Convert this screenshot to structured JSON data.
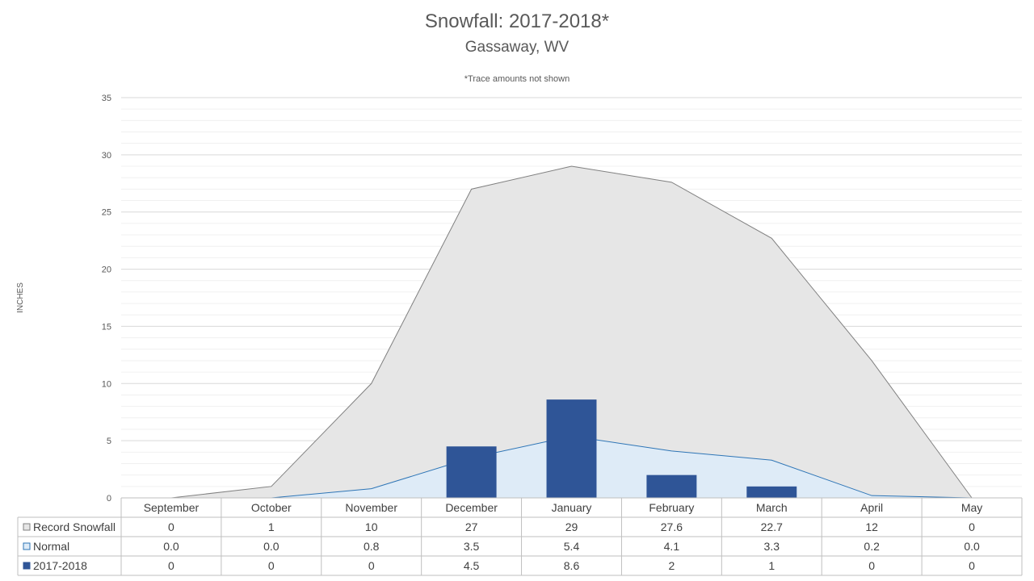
{
  "chart_data": {
    "type": "bar",
    "title": "Snowfall: 2017-2018*",
    "subtitle": "Gassaway, WV",
    "note": "*Trace amounts not shown",
    "ylabel": "INCHES",
    "ylim": [
      0,
      35
    ],
    "yticks": [
      0,
      5,
      10,
      15,
      20,
      25,
      30,
      35
    ],
    "minor_grid_step": 1,
    "grid": true,
    "categories": [
      "September",
      "October",
      "November",
      "December",
      "January",
      "February",
      "March",
      "April",
      "May"
    ],
    "series": [
      {
        "name": "Record Snowfall",
        "kind": "area",
        "color": "#e6e6e6",
        "line_color": "#808080",
        "values": [
          0,
          1,
          10,
          27,
          29,
          27.6,
          22.7,
          12,
          0
        ],
        "table_values": [
          "0",
          "1",
          "10",
          "27",
          "29",
          "27.6",
          "22.7",
          "12",
          "0"
        ]
      },
      {
        "name": "Normal",
        "kind": "area",
        "color": "#deebf7",
        "line_color": "#2e75b6",
        "values": [
          0.0,
          0.0,
          0.8,
          3.5,
          5.4,
          4.1,
          3.3,
          0.2,
          0.0
        ],
        "table_values": [
          "0.0",
          "0.0",
          "0.8",
          "3.5",
          "5.4",
          "4.1",
          "3.3",
          "0.2",
          "0.0"
        ]
      },
      {
        "name": "2017-2018",
        "kind": "bar",
        "color": "#2f5597",
        "values": [
          0,
          0,
          0,
          4.5,
          8.6,
          2,
          1,
          0,
          0
        ],
        "table_values": [
          "0",
          "0",
          "0",
          "4.5",
          "8.6",
          "2",
          "1",
          "0",
          "0"
        ]
      }
    ],
    "legend": "data-table"
  }
}
